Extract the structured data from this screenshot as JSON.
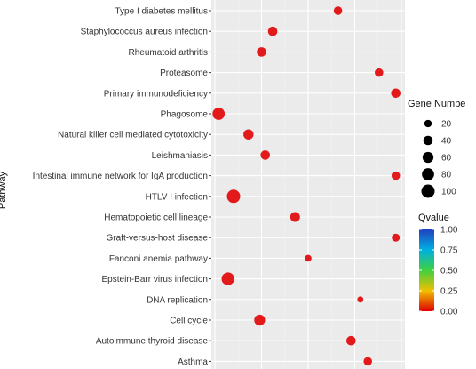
{
  "chart_data": {
    "type": "scatter",
    "ylabel": "Pathway",
    "xlabel": "",
    "x_range": [
      0,
      1
    ],
    "categories": [
      "Type I diabetes mellitus",
      "Staphylococcus aureus infection",
      "Rheumatoid arthritis",
      "Proteasome",
      "Primary immunodeficiency",
      "Phagosome",
      "Natural killer cell mediated cytotoxicity",
      "Leishmaniasis",
      "Intestinal immune network for IgA production",
      "HTLV-I infection",
      "Hematopoietic cell lineage",
      "Graft-versus-host disease",
      "Fanconi anemia pathway",
      "Epstein-Barr virus infection",
      "DNA replication",
      "Cell cycle",
      "Autoimmune thyroid disease",
      "Asthma"
    ],
    "points": [
      {
        "pathway": "Type I diabetes mellitus",
        "x": 0.66,
        "gene_number": 30,
        "qvalue": 0.0
      },
      {
        "pathway": "Staphylococcus aureus infection",
        "x": 0.31,
        "gene_number": 40,
        "qvalue": 0.0
      },
      {
        "pathway": "Rheumatoid arthritis",
        "x": 0.25,
        "gene_number": 40,
        "qvalue": 0.0
      },
      {
        "pathway": "Proteasome",
        "x": 0.88,
        "gene_number": 30,
        "qvalue": 0.0
      },
      {
        "pathway": "Primary immunodeficiency",
        "x": 0.97,
        "gene_number": 40,
        "qvalue": 0.0
      },
      {
        "pathway": "Phagosome",
        "x": 0.02,
        "gene_number": 80,
        "qvalue": 0.0
      },
      {
        "pathway": "Natural killer cell mediated cytotoxicity",
        "x": 0.18,
        "gene_number": 50,
        "qvalue": 0.0
      },
      {
        "pathway": "Leishmaniasis",
        "x": 0.27,
        "gene_number": 40,
        "qvalue": 0.0
      },
      {
        "pathway": "Intestinal immune network for IgA production",
        "x": 0.97,
        "gene_number": 30,
        "qvalue": 0.0
      },
      {
        "pathway": "HTLV-I infection",
        "x": 0.1,
        "gene_number": 100,
        "qvalue": 0.0
      },
      {
        "pathway": "Hematopoietic cell lineage",
        "x": 0.43,
        "gene_number": 45,
        "qvalue": 0.0
      },
      {
        "pathway": "Graft-versus-host disease",
        "x": 0.97,
        "gene_number": 25,
        "qvalue": 0.0
      },
      {
        "pathway": "Fanconi anemia pathway",
        "x": 0.5,
        "gene_number": 15,
        "qvalue": 0.0
      },
      {
        "pathway": "Epstein-Barr virus infection",
        "x": 0.07,
        "gene_number": 90,
        "qvalue": 0.0
      },
      {
        "pathway": "DNA replication",
        "x": 0.78,
        "gene_number": 10,
        "qvalue": 0.0
      },
      {
        "pathway": "Cell cycle",
        "x": 0.24,
        "gene_number": 60,
        "qvalue": 0.0
      },
      {
        "pathway": "Autoimmune thyroid disease",
        "x": 0.73,
        "gene_number": 40,
        "qvalue": 0.0
      },
      {
        "pathway": "Asthma",
        "x": 0.82,
        "gene_number": 30,
        "qvalue": 0.0
      }
    ],
    "size_legend": {
      "title": "Gene Numbe",
      "values": [
        20,
        40,
        60,
        80,
        100
      ],
      "labels": [
        "20",
        "40",
        "60",
        "80",
        "100"
      ]
    },
    "color_legend": {
      "title": "Qvalue",
      "ticks": [
        "1.00",
        "0.75",
        "0.50",
        "0.25",
        "0.00"
      ],
      "tick_values": [
        1.0,
        0.75,
        0.5,
        0.25,
        0.0
      ],
      "colors": [
        "#2040c0",
        "#00b0e0",
        "#40d040",
        "#f0c000",
        "#e00000"
      ]
    },
    "point_color": "#e31a1c",
    "panel_color": "#ebebeb",
    "grid": true
  }
}
